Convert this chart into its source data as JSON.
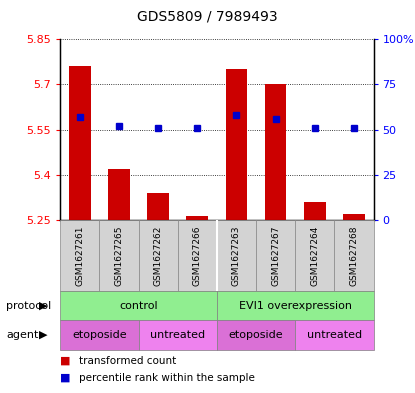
{
  "title": "GDS5809 / 7989493",
  "samples": [
    "GSM1627261",
    "GSM1627265",
    "GSM1627262",
    "GSM1627266",
    "GSM1627263",
    "GSM1627267",
    "GSM1627264",
    "GSM1627268"
  ],
  "transformed_counts": [
    5.76,
    5.42,
    5.34,
    5.262,
    5.75,
    5.7,
    5.31,
    5.27
  ],
  "percentile_ranks": [
    57,
    52,
    51,
    51,
    58,
    56,
    51,
    51
  ],
  "ylim_left": [
    5.25,
    5.85
  ],
  "ylim_right": [
    0,
    100
  ],
  "yticks_left": [
    5.25,
    5.4,
    5.55,
    5.7,
    5.85
  ],
  "yticks_right": [
    0,
    25,
    50,
    75,
    100
  ],
  "ytick_labels_left": [
    "5.25",
    "5.4",
    "5.55",
    "5.7",
    "5.85"
  ],
  "ytick_labels_right": [
    "0",
    "25",
    "50",
    "75",
    "100%"
  ],
  "baseline": 5.25,
  "bar_color": "#cc0000",
  "dot_color": "#0000cc",
  "dot_size": 5,
  "protocol_labels": [
    "control",
    "EVI1 overexpression"
  ],
  "protocol_starts": [
    0,
    4
  ],
  "protocol_ends": [
    4,
    8
  ],
  "protocol_color": "#90EE90",
  "agent_labels": [
    "etoposide",
    "untreated",
    "etoposide",
    "untreated"
  ],
  "agent_starts": [
    0,
    2,
    4,
    6
  ],
  "agent_ends": [
    2,
    4,
    6,
    8
  ],
  "agent_color": "#DA70D6",
  "agent_color_light": "#EE82EE",
  "legend_label_bar": "transformed count",
  "legend_label_dot": "percentile rank within the sample",
  "background_color": "#ffffff",
  "label_protocol": "protocol",
  "label_agent": "agent",
  "sample_bg_color": "#d3d3d3",
  "sample_edge_color": "#888888"
}
